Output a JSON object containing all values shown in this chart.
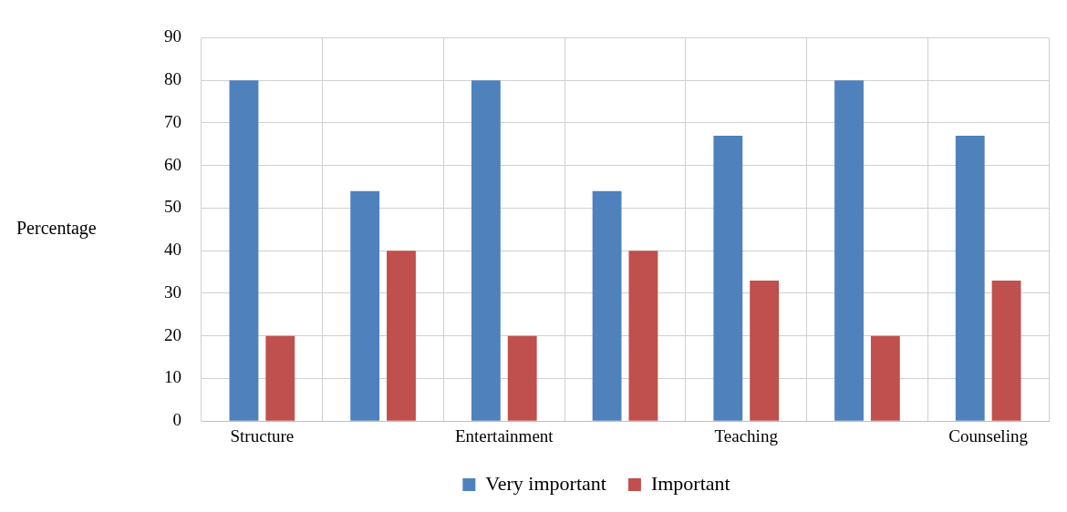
{
  "chart_data": {
    "type": "bar",
    "ylabel": "Percentage",
    "categories": [
      "Structure",
      null,
      "Entertainment",
      null,
      "Teaching",
      null,
      "Counseling"
    ],
    "series": [
      {
        "name": "Very important",
        "color": "#4f81bd",
        "values": [
          80,
          54,
          80,
          54,
          67,
          80,
          67
        ]
      },
      {
        "name": "Important",
        "color": "#c0504d",
        "values": [
          20,
          40,
          20,
          40,
          33,
          20,
          33
        ]
      }
    ],
    "ylim": [
      0,
      90
    ],
    "yticks": [
      0,
      10,
      20,
      30,
      40,
      50,
      60,
      70,
      80,
      90
    ],
    "grid": true,
    "legend": "bottom"
  }
}
